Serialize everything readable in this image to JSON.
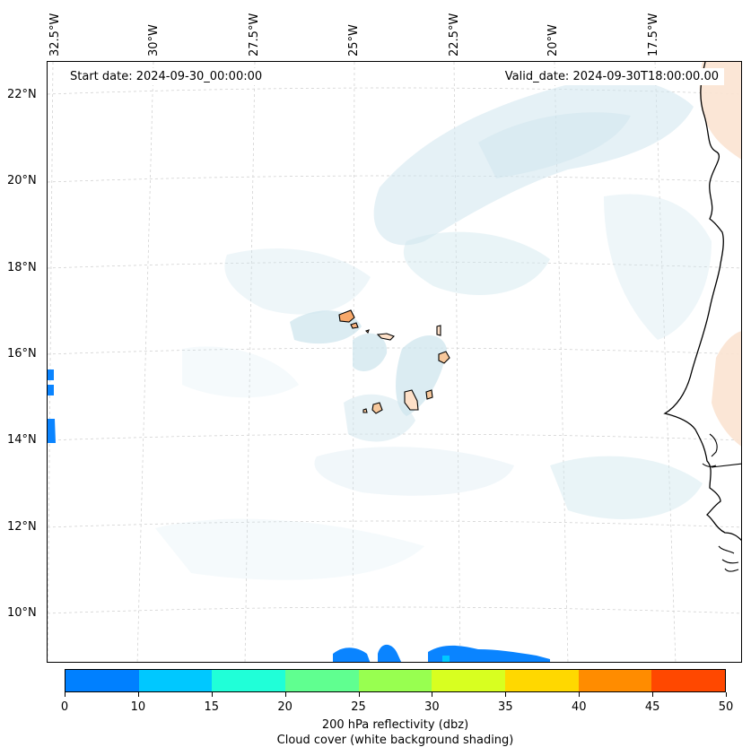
{
  "map": {
    "start_date": "Start date: 2024-09-30_00:00:00",
    "valid_date": "Valid_date: 2024-09-30T18:00:00.00",
    "lon_labels": [
      "32.5°W",
      "30°W",
      "27.5°W",
      "25°W",
      "22.5°W",
      "20°W",
      "17.5°W"
    ],
    "lat_labels": [
      "22°N",
      "20°N",
      "18°N",
      "16°N",
      "14°N",
      "12°N",
      "10°N"
    ]
  },
  "colorbar": {
    "label": "200 hPa reflectivity (dbz)",
    "sublabel": "Cloud cover (white background shading)",
    "ticks": [
      "0",
      "10",
      "15",
      "20",
      "25",
      "30",
      "35",
      "40",
      "45",
      "50"
    ],
    "colors": [
      "#0080ff",
      "#00c8ff",
      "#20ffd8",
      "#60ff90",
      "#98ff50",
      "#d8ff20",
      "#ffd800",
      "#ff8c00",
      "#ff4800"
    ]
  },
  "colors": {
    "cloud": "#cfe6ee",
    "land": "#fbe3d2",
    "island": "#f7b27e",
    "reflectivity_low": "#0a84ff"
  }
}
